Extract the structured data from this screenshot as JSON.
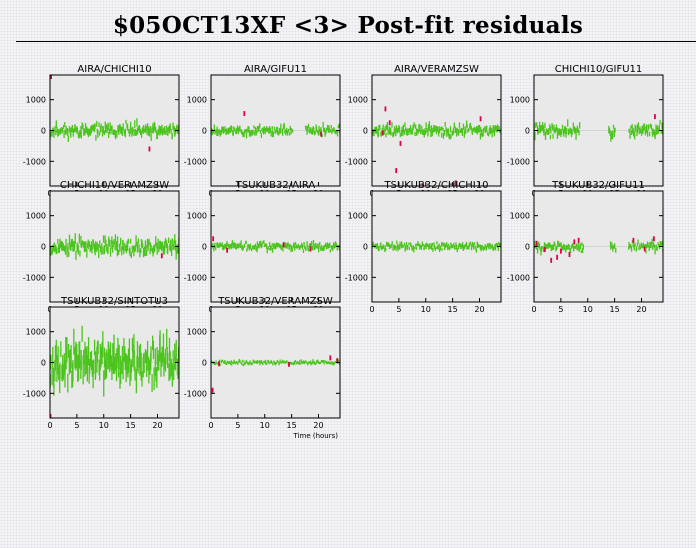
{
  "title": "$05OCT13XF <3> Post-fit residuals",
  "colors": {
    "good": "#4cc41e",
    "flagged": "#e0004a",
    "plot_bg": "#e9e9e9"
  },
  "chart_data": [
    {
      "type": "scatter",
      "title": "AIRA/CHICHI10",
      "xlim": [
        0,
        24
      ],
      "ylim": [
        -1800,
        1800
      ],
      "xticks": [
        0,
        5,
        10,
        15,
        20
      ],
      "yticks": [
        1000,
        0,
        -1000
      ],
      "gaps": [],
      "spread": 170,
      "seed": 11,
      "flagged": [
        [
          0.2,
          1750
        ],
        [
          9.2,
          -1900
        ],
        [
          18.5,
          -600
        ]
      ]
    },
    {
      "type": "scatter",
      "title": "AIRA/GIFU11",
      "xlim": [
        0,
        24
      ],
      "ylim": [
        -1800,
        1800
      ],
      "xticks": [
        0,
        5,
        10,
        15,
        20
      ],
      "yticks": [
        1000,
        0,
        -1000
      ],
      "gaps": [
        [
          15.2,
          17.5
        ]
      ],
      "spread": 130,
      "seed": 23,
      "flagged": [
        [
          6.2,
          550
        ],
        [
          20.5,
          -120
        ]
      ]
    },
    {
      "type": "scatter",
      "title": "AIRA/VERAMZSW",
      "xlim": [
        0,
        24
      ],
      "ylim": [
        -1800,
        1800
      ],
      "xticks": [
        0,
        5,
        10,
        15,
        20
      ],
      "yticks": [
        1000,
        0,
        -1000
      ],
      "gaps": [],
      "spread": 150,
      "seed": 37,
      "flagged": [
        [
          2.5,
          700
        ],
        [
          3.3,
          250
        ],
        [
          4.5,
          -1300
        ],
        [
          5.3,
          -420
        ],
        [
          9.5,
          -1800
        ],
        [
          15.6,
          -1700
        ],
        [
          20.2,
          380
        ],
        [
          2.0,
          -80
        ]
      ]
    },
    {
      "type": "scatter",
      "title": "CHICHI10/GIFU11",
      "xlim": [
        0,
        24
      ],
      "ylim": [
        -1800,
        1800
      ],
      "xticks": [
        0,
        5,
        10,
        15,
        20
      ],
      "yticks": [
        1000,
        0,
        -1000
      ],
      "gaps": [
        [
          8.6,
          13.8
        ],
        [
          15.2,
          17.6
        ]
      ],
      "spread": 170,
      "seed": 41,
      "flagged": [
        [
          22.5,
          450
        ]
      ]
    },
    {
      "type": "scatter",
      "title": "CHICHI10/VERAMZSW",
      "xlim": [
        0,
        24
      ],
      "ylim": [
        -1800,
        1800
      ],
      "xticks": [
        0,
        5,
        10,
        15,
        20
      ],
      "yticks": [
        1000,
        0,
        -1000
      ],
      "gaps": [],
      "spread": 210,
      "seed": 53,
      "flagged": [
        [
          20.8,
          -300
        ]
      ]
    },
    {
      "type": "scatter",
      "title": "TSUKUB32/AIRA",
      "xlim": [
        0,
        24
      ],
      "ylim": [
        -1800,
        1800
      ],
      "xticks": [
        0,
        5,
        10,
        15,
        20
      ],
      "yticks": [
        1000,
        0,
        -1000
      ],
      "gaps": [],
      "spread": 110,
      "seed": 61,
      "flagged": [
        [
          0.4,
          250
        ],
        [
          3.0,
          -120
        ],
        [
          13.5,
          50
        ],
        [
          18.5,
          -80
        ]
      ]
    },
    {
      "type": "scatter",
      "title": "TSUKUB32/CHICHI10",
      "xlim": [
        0,
        24
      ],
      "ylim": [
        -1800,
        1800
      ],
      "xticks": [
        0,
        5,
        10,
        15,
        20
      ],
      "yticks": [
        1000,
        0,
        -1000
      ],
      "gaps": [],
      "spread": 100,
      "seed": 71,
      "flagged": []
    },
    {
      "type": "scatter",
      "title": "TSUKUB32/GIFU11",
      "xlim": [
        0,
        24
      ],
      "ylim": [
        -1800,
        1800
      ],
      "xticks": [
        0,
        5,
        10,
        15,
        20
      ],
      "yticks": [
        1000,
        0,
        -1000
      ],
      "gaps": [
        [
          9.2,
          14.2
        ],
        [
          15.2,
          17.6
        ]
      ],
      "spread": 120,
      "seed": 83,
      "flagged": [
        [
          0.5,
          100
        ],
        [
          2.0,
          -100
        ],
        [
          3.2,
          -450
        ],
        [
          4.3,
          -350
        ],
        [
          5.0,
          -150
        ],
        [
          6.6,
          -260
        ],
        [
          7.5,
          150
        ],
        [
          8.3,
          200
        ],
        [
          18.5,
          200
        ],
        [
          20.6,
          -80
        ],
        [
          22.3,
          250
        ]
      ]
    },
    {
      "type": "scatter",
      "title": "TSUKUB32/SINTOTU3",
      "xlim": [
        0,
        24
      ],
      "ylim": [
        -1800,
        1800
      ],
      "xticks": [
        0,
        5,
        10,
        15,
        20
      ],
      "yticks": [
        1000,
        0,
        -1000
      ],
      "gaps": [],
      "spread": 560,
      "seed": 97,
      "flagged": [
        [
          0.1,
          -1750
        ]
      ]
    },
    {
      "type": "scatter",
      "title": "TSUKUB32/VERAMZSW",
      "xlim": [
        0,
        24
      ],
      "ylim": [
        -1800,
        1800
      ],
      "xticks": [
        0,
        5,
        10,
        15,
        20
      ],
      "yticks": [
        1000,
        0,
        -1000
      ],
      "gaps": [],
      "spread": 60,
      "seed": 101,
      "flagged": [
        [
          0.3,
          -900
        ],
        [
          1.5,
          -40
        ],
        [
          14.5,
          -60
        ],
        [
          22.2,
          150
        ],
        [
          23.5,
          60
        ]
      ],
      "xlabel": "Time (hours)"
    }
  ]
}
